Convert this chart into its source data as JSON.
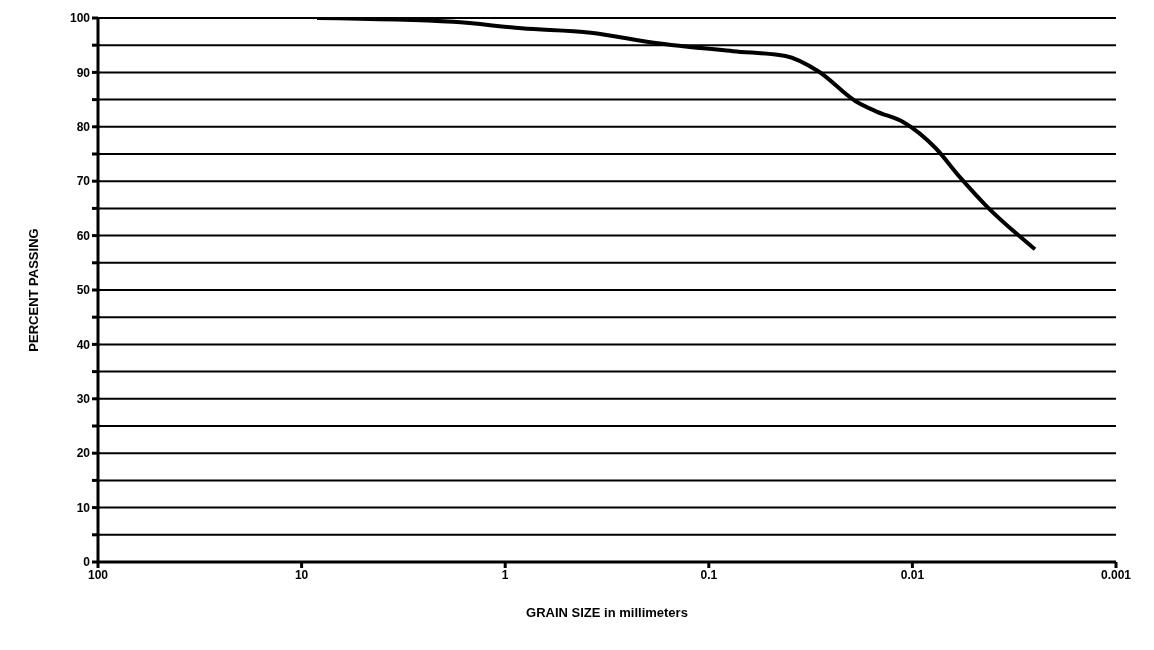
{
  "chart_data": {
    "type": "line",
    "xlabel": "GRAIN SIZE in millimeters",
    "ylabel": "PERCENT PASSING",
    "log": "x",
    "xlim": [
      100,
      0.001
    ],
    "xticks": [
      100,
      10,
      1,
      0.1,
      0.01,
      0.001
    ],
    "ylim": [
      0,
      100
    ],
    "yticks": [
      0,
      {
        "value": 5,
        "label": null
      },
      10,
      {
        "value": 15,
        "label": null
      },
      20,
      {
        "value": 25,
        "label": null
      },
      30,
      {
        "value": 35,
        "label": null
      },
      40,
      {
        "value": 45,
        "label": null
      },
      50,
      {
        "value": 55,
        "label": null
      },
      60,
      {
        "value": 65,
        "label": null
      },
      70,
      {
        "value": 75,
        "label": null
      },
      80,
      {
        "value": 85,
        "label": null
      },
      90,
      {
        "value": 95,
        "label": null
      },
      100
    ],
    "grid": "y",
    "marker": "none",
    "line_style": "solid",
    "series": [
      {
        "color": "#000000",
        "x": [
          8.4,
          1.8,
          0.83,
          0.38,
          0.19,
          0.076,
          0.042,
          0.029,
          0.019,
          0.015,
          0.011,
          0.0077,
          0.0058,
          0.0044,
          0.0025
        ],
        "values": [
          100,
          99.3,
          98.1,
          97.3,
          95.5,
          93.9,
          93,
          90.2,
          84.7,
          82.8,
          80.8,
          76.1,
          70.6,
          65.7,
          57.5
        ]
      }
    ]
  }
}
